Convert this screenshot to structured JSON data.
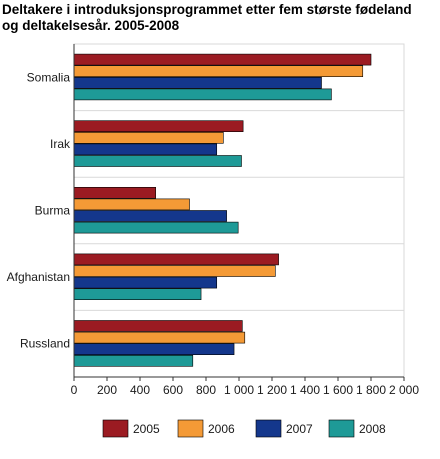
{
  "chart_data": {
    "type": "bar",
    "orientation": "horizontal",
    "title_lines": [
      "Deltakere i introduksjonsprogrammet etter fem største fødeland",
      "og deltakelsesår. 2005-2008"
    ],
    "categories": [
      "Somalia",
      "Irak",
      "Burma",
      "Afghanistan",
      "Russland"
    ],
    "series": [
      {
        "name": "2005",
        "color": "#9b1b22",
        "values": [
          1800,
          1025,
          495,
          1240,
          1020
        ]
      },
      {
        "name": "2006",
        "color": "#f49a36",
        "values": [
          1750,
          905,
          700,
          1220,
          1035
        ]
      },
      {
        "name": "2007",
        "color": "#14378c",
        "values": [
          1500,
          865,
          925,
          865,
          970
        ]
      },
      {
        "name": "2008",
        "color": "#1e9a97",
        "values": [
          1560,
          1015,
          995,
          770,
          720
        ]
      }
    ],
    "xlim": [
      0,
      2000
    ],
    "xticks": [
      0,
      200,
      400,
      600,
      800,
      1000,
      1200,
      1400,
      1600,
      1800,
      2000
    ],
    "xtick_labels": [
      "0",
      "200",
      "400",
      "600",
      "800",
      "1 000",
      "1 200",
      "1 400",
      "1 600",
      "1 800",
      "2 000"
    ],
    "grid": true,
    "legend_position": "bottom"
  }
}
